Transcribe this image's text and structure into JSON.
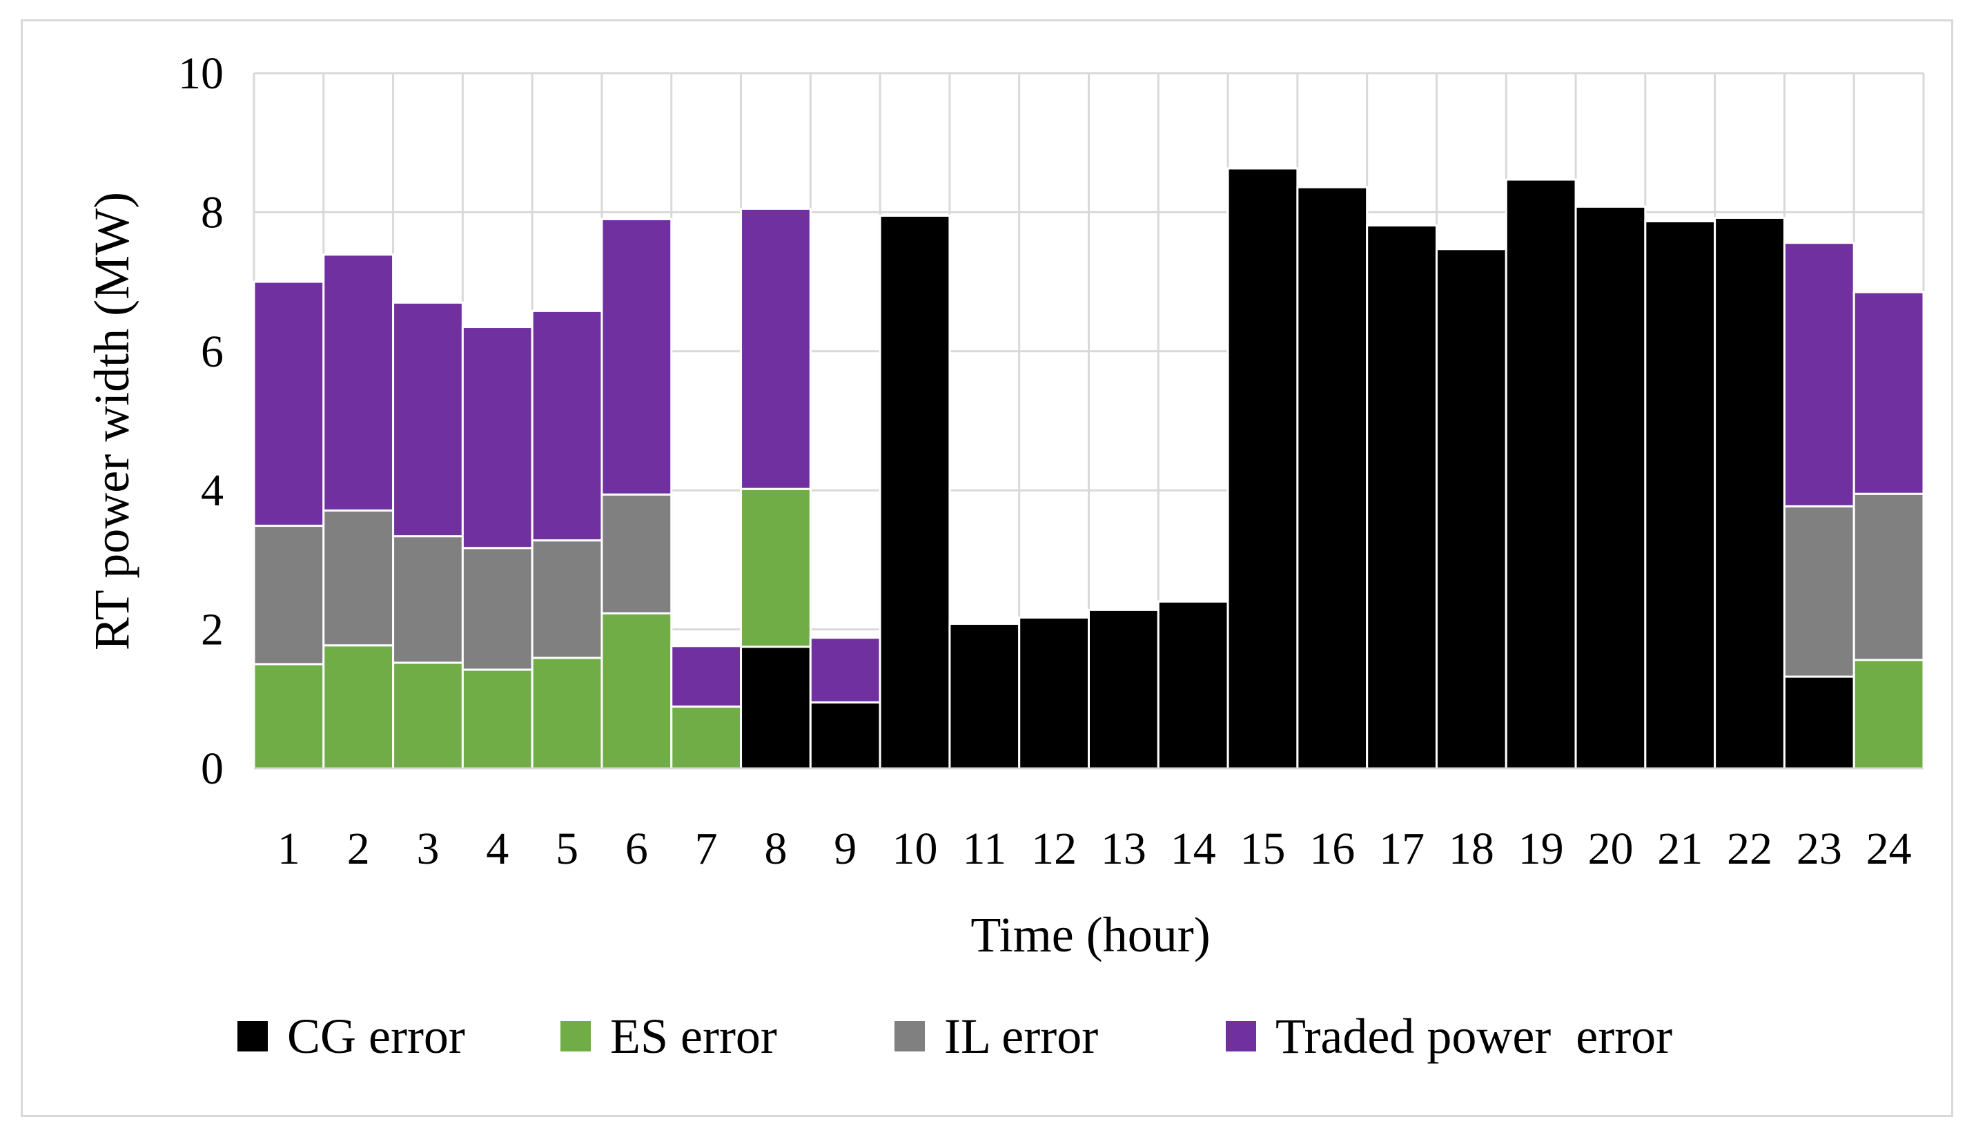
{
  "chart_data": {
    "type": "bar",
    "stacked": true,
    "xlabel": "Time (hour)",
    "ylabel": "RT power width (MW)",
    "ylim": [
      0,
      10
    ],
    "yticks": [
      0,
      2,
      4,
      6,
      8,
      10
    ],
    "grid": true,
    "legend_position": "bottom",
    "categories": [
      "1",
      "2",
      "3",
      "4",
      "5",
      "6",
      "7",
      "8",
      "9",
      "10",
      "11",
      "12",
      "13",
      "14",
      "15",
      "16",
      "17",
      "18",
      "19",
      "20",
      "21",
      "22",
      "23",
      "24"
    ],
    "series": [
      {
        "name": "CG error",
        "color": "#000000",
        "values": [
          0,
          0,
          0,
          0,
          0,
          0,
          0,
          1.75,
          0.95,
          7.95,
          2.08,
          2.17,
          2.28,
          2.4,
          8.63,
          8.36,
          7.81,
          7.47,
          8.47,
          8.08,
          7.87,
          7.92,
          1.32,
          0
        ]
      },
      {
        "name": "ES error",
        "color": "#70ad47",
        "values": [
          1.5,
          1.77,
          1.52,
          1.42,
          1.59,
          2.23,
          0.89,
          2.27,
          0,
          0,
          0,
          0,
          0,
          0,
          0,
          0,
          0,
          0,
          0,
          0,
          0,
          0,
          0,
          1.56
        ]
      },
      {
        "name": "IL error",
        "color": "#808080",
        "values": [
          1.99,
          1.94,
          1.82,
          1.75,
          1.69,
          1.71,
          0,
          0,
          0,
          0,
          0,
          0,
          0,
          0,
          0,
          0,
          0,
          0,
          0,
          0,
          0,
          0,
          2.45,
          2.39
        ]
      },
      {
        "name": "Traded power  error",
        "color": "#7030a0",
        "values": [
          3.51,
          3.68,
          3.36,
          3.18,
          3.3,
          3.96,
          0.87,
          4.03,
          0.93,
          0,
          0,
          0,
          0,
          0,
          0,
          0,
          0,
          0,
          0,
          0,
          0,
          0,
          3.79,
          2.9
        ]
      }
    ]
  }
}
